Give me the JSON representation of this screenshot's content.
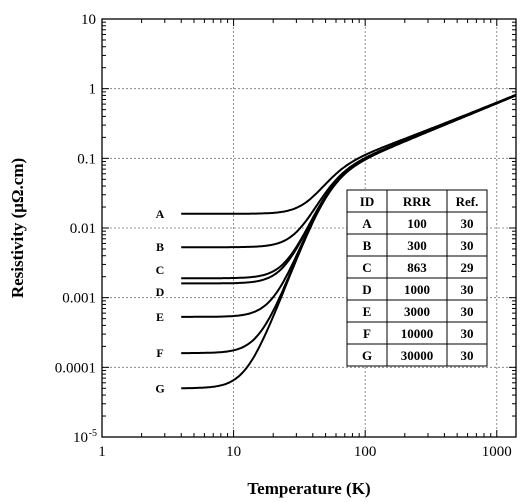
{
  "chart_data": {
    "type": "line",
    "xlabel": "Temperature (K)",
    "ylabel": "Resistivity (μΩ.cm)",
    "x_scale": "log",
    "y_scale": "log",
    "xlim": [
      1,
      1400
    ],
    "ylim": [
      1e-05,
      10
    ],
    "x_ticks": [
      {
        "v": 1,
        "label": "1"
      },
      {
        "v": 10,
        "label": "10"
      },
      {
        "v": 100,
        "label": "100"
      },
      {
        "v": 1000,
        "label": "1000"
      }
    ],
    "y_ticks": [
      {
        "v": 10,
        "label": "10"
      },
      {
        "v": 1,
        "label": "1"
      },
      {
        "v": 0.1,
        "label": "0.1"
      },
      {
        "v": 0.01,
        "label": "0.01"
      },
      {
        "v": 0.001,
        "label": "0.001"
      },
      {
        "v": 0.0001,
        "label": "0.0001"
      },
      {
        "v": 1e-05,
        "label": "10",
        "sup": "-5"
      }
    ],
    "grid": true,
    "series": [
      {
        "name": "A",
        "residual": 0.016,
        "label_y": 0.016
      },
      {
        "name": "B",
        "residual": 0.0053,
        "label_y": 0.0053
      },
      {
        "name": "C",
        "residual": 0.0019,
        "label_y": 0.0025
      },
      {
        "name": "D",
        "residual": 0.0016,
        "label_y": 0.0012
      },
      {
        "name": "E",
        "residual": 0.00053,
        "label_y": 0.00053
      },
      {
        "name": "F",
        "residual": 0.00016,
        "label_y": 0.00016
      },
      {
        "name": "G",
        "residual": 5e-05,
        "label_y": 5e-05
      }
    ],
    "table": {
      "headers": [
        "ID",
        "RRR",
        "Ref."
      ],
      "rows": [
        [
          "A",
          "100",
          "30"
        ],
        [
          "B",
          "300",
          "30"
        ],
        [
          "C",
          "863",
          "29"
        ],
        [
          "D",
          "1000",
          "30"
        ],
        [
          "E",
          "3000",
          "30"
        ],
        [
          "F",
          "10000",
          "30"
        ],
        [
          "G",
          "30000",
          "30"
        ]
      ]
    }
  }
}
